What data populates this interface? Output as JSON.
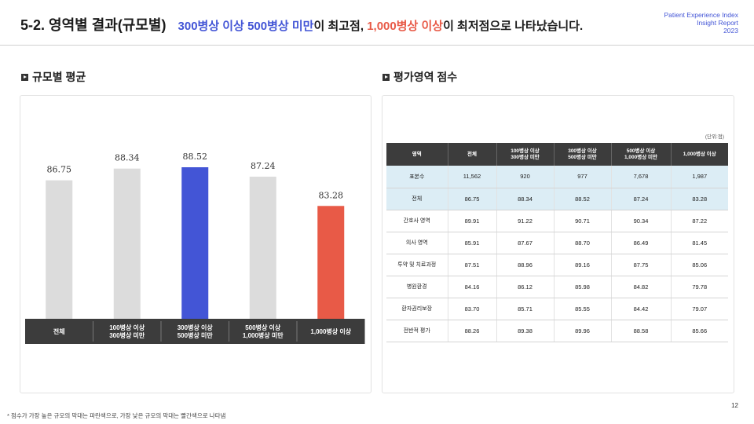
{
  "header": {
    "title": "5-2. 영역별 결과(규모별)",
    "subtitle_part1": "300병상 이상 500병상 미만",
    "subtitle_part2": "이 최고점, ",
    "subtitle_part3": "1,000병상 이상",
    "subtitle_part4": "이 최저점으로 나타났습니다.",
    "report_line1": "Patient Experience Index",
    "report_line2": "Insight Report",
    "report_line3": "2023"
  },
  "left_section": {
    "title": "규모별 평균"
  },
  "right_section": {
    "title": "평가영역 점수",
    "unit": "(단위:점)"
  },
  "chart_data": {
    "type": "bar",
    "categories": [
      "전체",
      "100병상 이상\n300병상 미만",
      "300병상 이상\n500병상 미만",
      "500병상 이상\n1,000병상 미만",
      "1,000병상 이상"
    ],
    "values": [
      86.75,
      88.34,
      88.52,
      87.24,
      83.28
    ],
    "colors": [
      "#dcdcdc",
      "#dcdcdc",
      "#4355d6",
      "#dcdcdc",
      "#e85a47"
    ],
    "ylim": [
      0,
      100
    ]
  },
  "table": {
    "headers": [
      "영역",
      "전체",
      "100병상 이상\n300병상 미만",
      "300병상 이상\n500병상 미만",
      "500병상 이상\n1,000병상 미만",
      "1,000병상 이상"
    ],
    "rows": [
      [
        "표본수",
        "11,562",
        "920",
        "977",
        "7,678",
        "1,987"
      ],
      [
        "전체",
        "86.75",
        "88.34",
        "88.52",
        "87.24",
        "83.28"
      ],
      [
        "간호사 영역",
        "89.91",
        "91.22",
        "90.71",
        "90.34",
        "87.22"
      ],
      [
        "의사 영역",
        "85.91",
        "87.67",
        "88.70",
        "86.49",
        "81.45"
      ],
      [
        "투약 및 치료과정",
        "87.51",
        "88.96",
        "89.16",
        "87.75",
        "85.06"
      ],
      [
        "병원환경",
        "84.16",
        "86.12",
        "85.98",
        "84.82",
        "79.78"
      ],
      [
        "환자권리보장",
        "83.70",
        "85.71",
        "85.55",
        "84.42",
        "79.07"
      ],
      [
        "전반적 평가",
        "88.26",
        "89.38",
        "89.96",
        "88.58",
        "85.66"
      ]
    ]
  },
  "footnote": "* 점수가 가장 높은 규모의 막대는 파란색으로, 가장 낮은 규모의 막대는 빨간색으로 나타냄",
  "page_number": "12"
}
